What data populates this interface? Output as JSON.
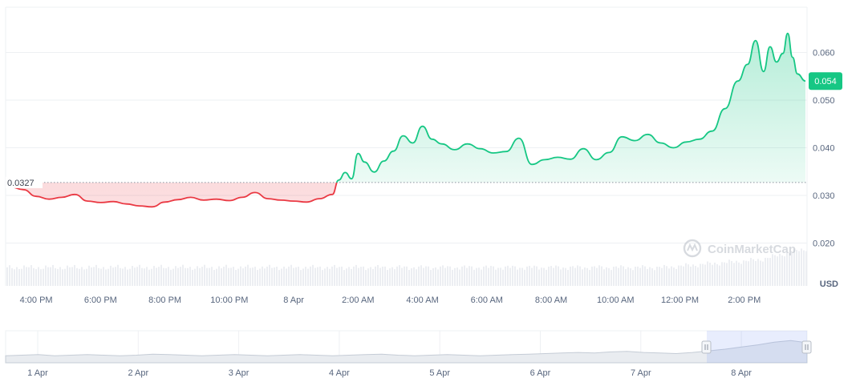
{
  "chart_data": {
    "type": "line",
    "currency": "USD",
    "watermark": "CoinMarketCap",
    "reference_price": 0.0327,
    "reference_price_label": "0.0327",
    "current_price": 0.054,
    "current_price_label": "0.054",
    "y_axis": {
      "ylim": [
        0.011,
        0.0695
      ],
      "ticks": [
        0.02,
        0.03,
        0.04,
        0.05,
        0.06
      ],
      "tick_labels": [
        "0.020",
        "0.030",
        "0.040",
        "0.050",
        "0.060"
      ]
    },
    "x_axis": {
      "tick_hours": [
        -8,
        -6,
        -4,
        -2,
        0,
        2,
        4,
        6,
        8,
        10,
        12,
        14
      ],
      "tick_labels": [
        "4:00 PM",
        "6:00 PM",
        "8:00 PM",
        "10:00 PM",
        "8 Apr",
        "2:00 AM",
        "4:00 AM",
        "6:00 AM",
        "8:00 AM",
        "10:00 AM",
        "12:00 PM",
        "2:00 PM"
      ],
      "x_note": "hours relative to 8 Apr 00:00"
    },
    "grid": "horizontal",
    "series": [
      {
        "values_hours": [
          -8.8,
          -8.4,
          -8.0,
          -7.6,
          -7.2,
          -6.8,
          -6.4,
          -6.0,
          -5.6,
          -5.2,
          -4.8,
          -4.4,
          -4.0,
          -3.6,
          -3.2,
          -2.8,
          -2.4,
          -2.0,
          -1.6,
          -1.2,
          -0.8,
          -0.4,
          0.0,
          0.4,
          0.8,
          1.2,
          1.4,
          1.6,
          1.8,
          2.0,
          2.2,
          2.5,
          2.8,
          3.1,
          3.4,
          3.7,
          4.0,
          4.3,
          4.6,
          5.0,
          5.4,
          5.8,
          6.2,
          6.6,
          7.0,
          7.4,
          7.8,
          8.2,
          8.6,
          9.0,
          9.4,
          9.8,
          10.2,
          10.6,
          11.0,
          11.4,
          11.8,
          12.2,
          12.6,
          13.0,
          13.4,
          13.8,
          14.1,
          14.35,
          14.6,
          14.8,
          15.0,
          15.2,
          15.35,
          15.5,
          15.65,
          15.9
        ],
        "values": [
          0.0318,
          0.0312,
          0.0298,
          0.0292,
          0.0296,
          0.0302,
          0.0288,
          0.0285,
          0.0287,
          0.0282,
          0.0278,
          0.0276,
          0.0286,
          0.0291,
          0.0296,
          0.029,
          0.0292,
          0.0289,
          0.0296,
          0.0306,
          0.0293,
          0.029,
          0.0288,
          0.0286,
          0.0293,
          0.0302,
          0.0332,
          0.0348,
          0.0335,
          0.0388,
          0.037,
          0.0349,
          0.0372,
          0.0393,
          0.0425,
          0.041,
          0.0445,
          0.0418,
          0.0408,
          0.0396,
          0.0408,
          0.0398,
          0.0389,
          0.0392,
          0.042,
          0.0365,
          0.0375,
          0.038,
          0.0376,
          0.0398,
          0.0375,
          0.039,
          0.0423,
          0.0415,
          0.0428,
          0.041,
          0.04,
          0.0412,
          0.0418,
          0.0435,
          0.0482,
          0.054,
          0.0575,
          0.0625,
          0.056,
          0.0612,
          0.058,
          0.0598,
          0.064,
          0.059,
          0.0555,
          0.054
        ]
      }
    ]
  },
  "navigator": {
    "labels": [
      "1 Apr",
      "2 Apr",
      "3 Apr",
      "4 Apr",
      "5 Apr",
      "6 Apr",
      "7 Apr",
      "8 Apr"
    ],
    "values": [
      0.03,
      0.031,
      0.032,
      0.03,
      0.031,
      0.032,
      0.031,
      0.03,
      0.031,
      0.033,
      0.032,
      0.031,
      0.03,
      0.031,
      0.032,
      0.031,
      0.03,
      0.031,
      0.032,
      0.031,
      0.03,
      0.031,
      0.032,
      0.033,
      0.031,
      0.03,
      0.031,
      0.032,
      0.031,
      0.03,
      0.031,
      0.032,
      0.033,
      0.034,
      0.035,
      0.036,
      0.035,
      0.037,
      0.038,
      0.036,
      0.035,
      0.034,
      0.036,
      0.039,
      0.042,
      0.046,
      0.05,
      0.055,
      0.058,
      0.054
    ]
  }
}
